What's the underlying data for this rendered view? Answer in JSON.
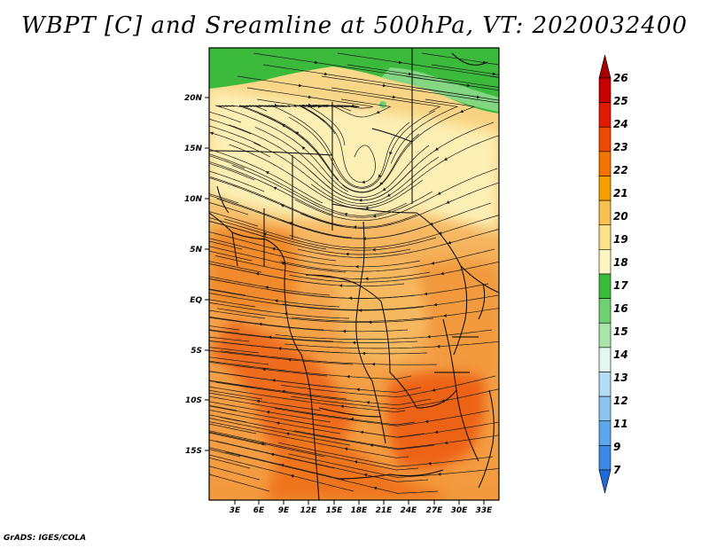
{
  "title": "WBPT [C] and Sreamline at 500hPa, VT: 2020032400",
  "footer": "GrADS: IGES/COLA",
  "map": {
    "lat_ticks": [
      "20N",
      "15N",
      "10N",
      "5N",
      "EQ",
      "5S",
      "10S",
      "15S"
    ],
    "lon_ticks": [
      "3E",
      "6E",
      "9E",
      "12E",
      "15E",
      "18E",
      "21E",
      "24E",
      "27E",
      "30E",
      "33E"
    ]
  },
  "colorbar": {
    "labels": [
      "26",
      "25",
      "24",
      "23",
      "22",
      "21",
      "20",
      "19",
      "18",
      "17",
      "16",
      "15",
      "14",
      "13",
      "12",
      "11",
      "9",
      "7"
    ],
    "colors": [
      "#a50000",
      "#c80000",
      "#e11a00",
      "#f04a00",
      "#f37400",
      "#f5a000",
      "#f8c050",
      "#fae28a",
      "#fdf5c0",
      "#3cba3c",
      "#6fd16f",
      "#a9e5a9",
      "#e2f7f2",
      "#b4dcf5",
      "#8ec4f0",
      "#5ea6ec",
      "#3c88e6",
      "#1f6ad8"
    ]
  },
  "colors": {
    "green": "#3cba3c",
    "light_green": "#8fdc8f",
    "cream": "#fbeaa0",
    "yellow": "#f8d27a",
    "orange": "#f3a03a",
    "deep_orange": "#ef6f1a",
    "border": "#000000"
  }
}
